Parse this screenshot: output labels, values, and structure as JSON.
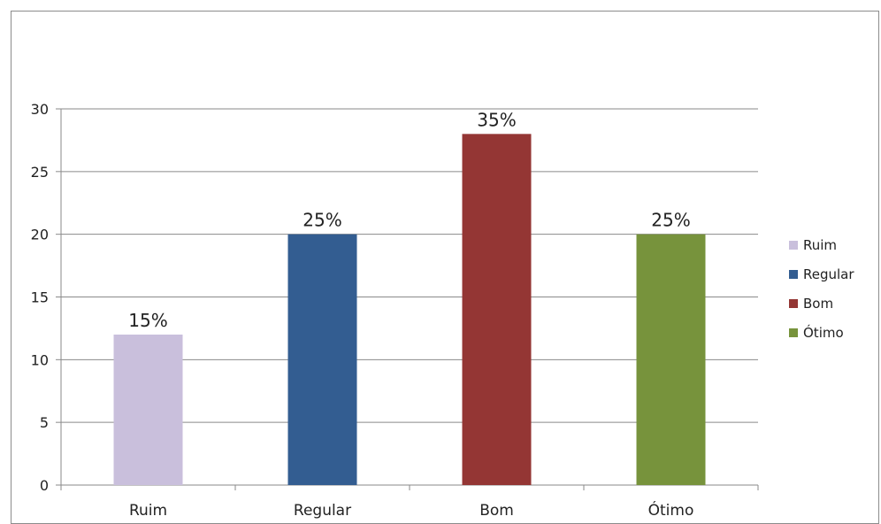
{
  "chart_data": {
    "type": "bar",
    "categories": [
      "Ruim",
      "Regular",
      "Bom",
      "Ótimo"
    ],
    "values": [
      12,
      20,
      28,
      20
    ],
    "data_labels": [
      "15%",
      "25%",
      "35%",
      "25%"
    ],
    "colors": [
      "#c9bfdc",
      "#335d91",
      "#943634",
      "#77933c"
    ],
    "ylim": [
      0,
      30
    ],
    "yticks": [
      "0",
      "5",
      "10",
      "15",
      "20",
      "25",
      "30"
    ],
    "grid": true,
    "legend": {
      "placement": "right",
      "entries": [
        "Ruim",
        "Regular",
        "Bom",
        "Ótimo"
      ]
    },
    "title": "",
    "xlabel": "",
    "ylabel": ""
  }
}
